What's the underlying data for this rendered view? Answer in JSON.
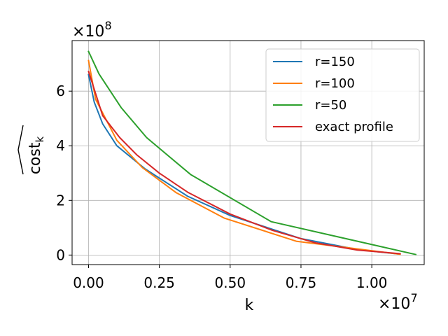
{
  "chart_data": {
    "type": "line",
    "xlabel": "k",
    "ylabel": "cost_k (hat)",
    "x_offset_label": "×10^7",
    "y_offset_label": "×10^8",
    "xlim": [
      -580000,
      11850000
    ],
    "ylim": [
      -35000000,
      785000000
    ],
    "xticks": [
      0,
      2500000,
      5000000,
      7500000,
      10000000
    ],
    "xtick_labels": [
      "0.00",
      "0.25",
      "0.50",
      "0.75",
      "1.00"
    ],
    "yticks": [
      0,
      200000000,
      400000000,
      600000000
    ],
    "ytick_labels": [
      "0",
      "2",
      "4",
      "6"
    ],
    "grid": true,
    "legend_position": "top-right",
    "series": [
      {
        "name": "r=150",
        "color": "#1f77b4",
        "x": [
          0,
          200000,
          500000,
          1000000,
          2000000,
          3500000,
          5000000,
          7500000,
          9500000,
          11000000
        ],
        "y": [
          660000000,
          560000000,
          480000000,
          400000000,
          315000000,
          215000000,
          145000000,
          60000000,
          20000000,
          3000000
        ]
      },
      {
        "name": "r=100",
        "color": "#ff7f0e",
        "x": [
          0,
          250000,
          1000000,
          1900000,
          3100000,
          4800000,
          7350000,
          11000000
        ],
        "y": [
          712000000,
          570000000,
          420000000,
          320000000,
          228000000,
          135000000,
          50000000,
          3000000
        ]
      },
      {
        "name": "r=50",
        "color": "#2ca02c",
        "x": [
          0,
          370000,
          1150000,
          2050000,
          3600000,
          6450000,
          11550000
        ],
        "y": [
          745000000,
          663000000,
          540000000,
          430000000,
          295000000,
          122000000,
          2000000
        ]
      },
      {
        "name": "exact profile",
        "color": "#d62728",
        "x": [
          0,
          500000,
          1100000,
          1700000,
          2500000,
          3500000,
          5000000,
          6500000,
          8000000,
          9500000,
          11000000
        ],
        "y": [
          672000000,
          510000000,
          430000000,
          367000000,
          300000000,
          230000000,
          150000000,
          90000000,
          45000000,
          18000000,
          5000000
        ]
      }
    ]
  }
}
